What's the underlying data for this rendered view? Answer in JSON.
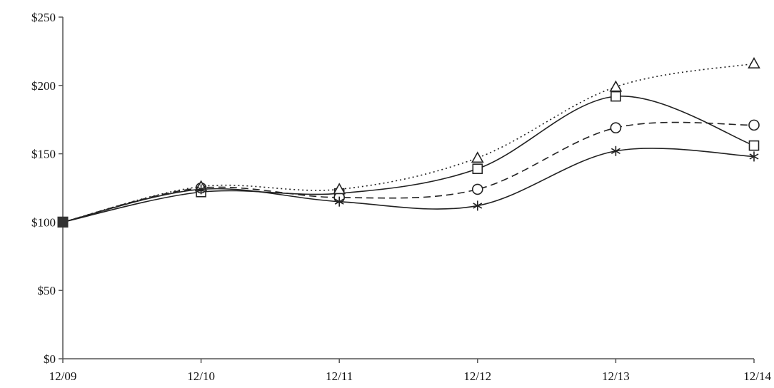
{
  "chart_data": {
    "type": "line",
    "categories": [
      "12/09",
      "12/10",
      "12/11",
      "12/12",
      "12/13",
      "12/14"
    ],
    "y_ticks": [
      "$0",
      "$50",
      "$100",
      "$150",
      "$200",
      "$250"
    ],
    "y_tick_values": [
      0,
      50,
      100,
      150,
      200,
      250
    ],
    "ylim": [
      0,
      250
    ],
    "grid": false,
    "legend": "none",
    "series": [
      {
        "marker": "square-icon",
        "line_style": "solid",
        "color": "#222222",
        "values": [
          100,
          122,
          121,
          139,
          192,
          156
        ]
      },
      {
        "marker": "circle-icon",
        "line_style": "dashed",
        "color": "#222222",
        "values": [
          100,
          125,
          118,
          124,
          169,
          171
        ]
      },
      {
        "marker": "triangle-icon",
        "line_style": "dotted",
        "color": "#222222",
        "values": [
          100,
          126,
          124,
          147,
          199,
          216
        ]
      },
      {
        "marker": "asterisk-icon",
        "line_style": "solid",
        "color": "#222222",
        "values": [
          100,
          124,
          115,
          112,
          152,
          148
        ]
      }
    ]
  }
}
